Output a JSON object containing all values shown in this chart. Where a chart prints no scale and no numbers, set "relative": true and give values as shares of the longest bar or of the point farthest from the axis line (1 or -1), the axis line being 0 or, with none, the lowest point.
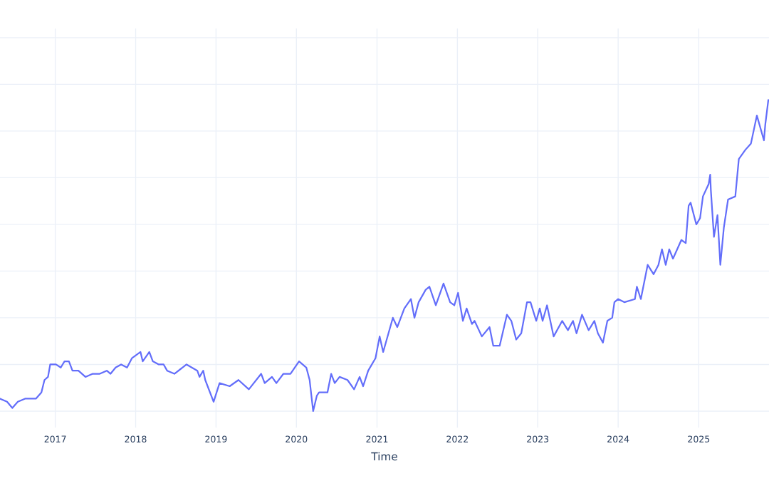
{
  "chart_data": {
    "type": "line",
    "xlabel": "Time",
    "relative": true,
    "grid": true,
    "xlim": [
      "2016-04-25",
      "2025-11-16"
    ],
    "xticks": [
      {
        "value": "2017",
        "label": "2017"
      },
      {
        "value": "2018",
        "label": "2018"
      },
      {
        "value": "2019",
        "label": "2019"
      },
      {
        "value": "2020",
        "label": "2020"
      },
      {
        "value": "2021",
        "label": "2021"
      },
      {
        "value": "2022",
        "label": "2022"
      },
      {
        "value": "2023",
        "label": "2023"
      },
      {
        "value": "2024",
        "label": "2024"
      },
      {
        "value": "2025",
        "label": "2025"
      }
    ],
    "series": [
      {
        "color": "#636efa",
        "x": [
          "2016-04-25",
          "2016-05-27",
          "2016-06-20",
          "2016-07-15",
          "2016-08-17",
          "2016-09-19",
          "2016-10-05",
          "2016-10-30",
          "2016-11-13",
          "2016-11-29",
          "2016-12-09",
          "2017-01-04",
          "2017-01-26",
          "2017-02-12",
          "2017-03-04",
          "2017-03-20",
          "2017-04-16",
          "2017-05-18",
          "2017-06-20",
          "2017-07-22",
          "2017-08-23",
          "2017-09-09",
          "2017-10-02",
          "2017-10-27",
          "2017-11-23",
          "2017-12-15",
          "2018-01-23",
          "2018-02-02",
          "2018-03-04",
          "2018-03-20",
          "2018-04-16",
          "2018-05-08",
          "2018-05-24",
          "2018-06-26",
          "2018-08-20",
          "2018-10-08",
          "2018-10-18",
          "2018-11-04",
          "2018-11-13",
          "2018-12-21",
          "2019-01-17",
          "2019-03-04",
          "2019-04-13",
          "2019-05-30",
          "2019-07-25",
          "2019-08-10",
          "2019-09-12",
          "2019-10-02",
          "2019-11-03",
          "2019-12-05",
          "2020-01-13",
          "2020-02-15",
          "2020-03-01",
          "2020-03-17",
          "2020-04-03",
          "2020-04-13",
          "2020-05-21",
          "2020-06-07",
          "2020-06-23",
          "2020-07-15",
          "2020-08-20",
          "2020-09-19",
          "2020-10-14",
          "2020-10-30",
          "2020-11-22",
          "2020-12-25",
          "2021-01-13",
          "2021-01-29",
          "2021-02-22",
          "2021-03-14",
          "2021-04-03",
          "2021-05-05",
          "2021-06-04",
          "2021-06-20",
          "2021-07-09",
          "2021-08-10",
          "2021-08-27",
          "2021-09-25",
          "2021-10-30",
          "2021-11-29",
          "2021-12-18",
          "2022-01-04",
          "2022-01-26",
          "2022-02-12",
          "2022-03-08",
          "2022-03-20",
          "2022-04-22",
          "2022-05-27",
          "2022-06-13",
          "2022-07-12",
          "2022-08-14",
          "2022-09-03",
          "2022-09-25",
          "2022-10-18",
          "2022-11-13",
          "2022-11-29",
          "2022-12-25",
          "2023-01-10",
          "2023-01-23",
          "2023-02-12",
          "2023-03-14",
          "2023-04-22",
          "2023-05-18",
          "2023-06-10",
          "2023-06-26",
          "2023-07-21",
          "2023-08-20",
          "2023-09-15",
          "2023-10-01",
          "2023-10-24",
          "2023-11-13",
          "2023-12-05",
          "2023-12-15",
          "2024-01-01",
          "2024-01-29",
          "2024-03-17",
          "2024-03-26",
          "2024-04-13",
          "2024-05-14",
          "2024-06-10",
          "2024-07-02",
          "2024-07-18",
          "2024-08-04",
          "2024-08-20",
          "2024-09-06",
          "2024-10-14",
          "2024-11-03",
          "2024-11-16",
          "2024-11-25",
          "2024-12-21",
          "2025-01-07",
          "2025-01-20",
          "2025-02-15",
          "2025-02-22",
          "2025-02-25",
          "2025-03-11",
          "2025-03-27",
          "2025-04-09",
          "2025-04-25",
          "2025-05-14",
          "2025-06-16",
          "2025-07-02",
          "2025-08-01",
          "2025-08-26",
          "2025-09-22",
          "2025-10-24",
          "2025-10-30",
          "2025-11-13"
        ],
        "values": [
          0.04,
          0.03,
          0.01,
          0.03,
          0.04,
          0.04,
          0.04,
          0.06,
          0.1,
          0.11,
          0.15,
          0.15,
          0.14,
          0.16,
          0.16,
          0.13,
          0.13,
          0.11,
          0.12,
          0.12,
          0.13,
          0.12,
          0.14,
          0.15,
          0.14,
          0.17,
          0.19,
          0.16,
          0.19,
          0.16,
          0.15,
          0.15,
          0.13,
          0.12,
          0.15,
          0.13,
          0.11,
          0.13,
          0.1,
          0.03,
          0.09,
          0.08,
          0.1,
          0.07,
          0.12,
          0.09,
          0.11,
          0.09,
          0.12,
          0.12,
          0.16,
          0.14,
          0.1,
          0.0,
          0.05,
          0.06,
          0.06,
          0.12,
          0.09,
          0.11,
          0.1,
          0.07,
          0.11,
          0.08,
          0.13,
          0.17,
          0.24,
          0.19,
          0.25,
          0.3,
          0.27,
          0.33,
          0.36,
          0.3,
          0.35,
          0.39,
          0.4,
          0.34,
          0.41,
          0.35,
          0.34,
          0.38,
          0.29,
          0.33,
          0.28,
          0.29,
          0.24,
          0.27,
          0.21,
          0.21,
          0.31,
          0.29,
          0.23,
          0.25,
          0.35,
          0.35,
          0.29,
          0.33,
          0.29,
          0.34,
          0.24,
          0.29,
          0.26,
          0.29,
          0.25,
          0.31,
          0.26,
          0.29,
          0.25,
          0.22,
          0.29,
          0.3,
          0.35,
          0.36,
          0.35,
          0.36,
          0.4,
          0.36,
          0.47,
          0.44,
          0.47,
          0.52,
          0.47,
          0.52,
          0.49,
          0.55,
          0.54,
          0.66,
          0.67,
          0.6,
          0.62,
          0.69,
          0.73,
          0.76,
          0.71,
          0.56,
          0.63,
          0.47,
          0.59,
          0.68,
          0.69,
          0.81,
          0.84,
          0.86,
          0.95,
          0.87,
          0.92,
          1.0
        ]
      }
    ]
  }
}
